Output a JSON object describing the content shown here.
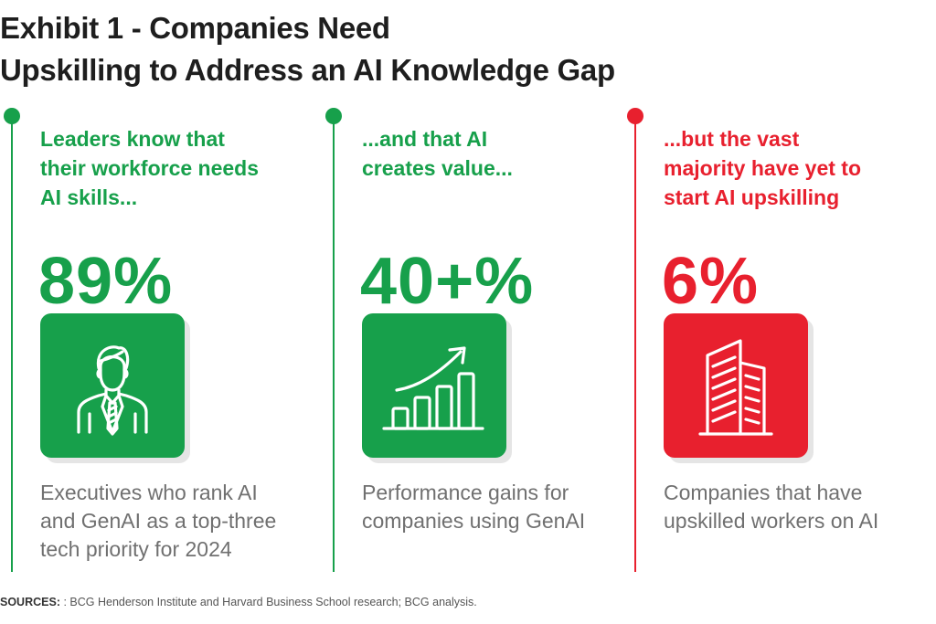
{
  "title": {
    "line1": "Exhibit 1 - Companies Need",
    "line2": "Upskilling to Address an AI Knowledge Gap"
  },
  "colors": {
    "green": "#17a04b",
    "red": "#e8202e"
  },
  "columns": [
    {
      "heading": [
        "Leaders know that",
        "their workforce needs",
        "AI skills..."
      ],
      "stat": "89%",
      "icon": "executive-person-icon",
      "description": [
        "Executives who rank AI",
        "and GenAI as a top-three",
        "tech priority for 2024"
      ]
    },
    {
      "heading": [
        "...and that AI",
        "creates value..."
      ],
      "stat": "40+%",
      "icon": "growth-bar-chart-icon",
      "description": [
        "Performance gains for",
        "companies using GenAI"
      ]
    },
    {
      "heading": [
        "...but the vast",
        "majority have yet to",
        "start AI upskilling"
      ],
      "stat": "6%",
      "icon": "office-building-icon",
      "description": [
        "Companies that have",
        "upskilled workers on AI"
      ]
    }
  ],
  "sources": {
    "label": "SOURCES:",
    "text": " : BCG Henderson Institute and Harvard Business School research; BCG analysis."
  }
}
